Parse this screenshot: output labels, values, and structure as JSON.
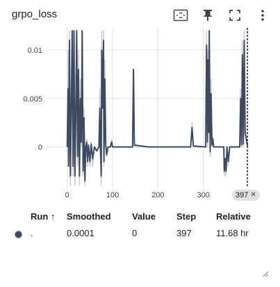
{
  "card": {
    "title": "grpo_loss",
    "icons": [
      "fit-domain-icon",
      "pin-icon",
      "fullscreen-icon",
      "more-vert-icon"
    ]
  },
  "step_chip": {
    "label": "397",
    "close": "✕"
  },
  "table": {
    "headers": {
      "run": "Run ↑",
      "smoothed": "Smoothed",
      "value": "Value",
      "step": "Step",
      "relative": "Relative"
    },
    "rows": [
      {
        "run": ".",
        "smoothed": "0.0001",
        "value": "0",
        "step": "397",
        "relative": "11.68 hr",
        "color": "#3d4a63"
      }
    ]
  },
  "chart_data": {
    "type": "line",
    "title": "",
    "xlabel": "",
    "ylabel": "",
    "xlim": [
      -47,
      403
    ],
    "ylim": [
      -0.0042,
      0.0123
    ],
    "x_ticks": [
      0,
      100,
      200,
      300
    ],
    "y_ticks": [
      0,
      0.005,
      0.01
    ],
    "x_tick_labels": [
      "0",
      "100",
      "200",
      "300"
    ],
    "y_tick_labels": [
      "0",
      "0.005",
      "0.01"
    ],
    "grid": true,
    "cursor_step": 397,
    "series": [
      {
        "role": "raw",
        "color": "#c8ced8",
        "points": [
          [
            0,
            0
          ],
          [
            2,
            0.01
          ],
          [
            3,
            -0.002
          ],
          [
            5,
            0.012
          ],
          [
            7,
            -0.004
          ],
          [
            9,
            0.006
          ],
          [
            11,
            0.012
          ],
          [
            13,
            -0.003
          ],
          [
            15,
            0.012
          ],
          [
            17,
            -0.004
          ],
          [
            19,
            0.005
          ],
          [
            21,
            0.012
          ],
          [
            23,
            -0.002
          ],
          [
            25,
            0.01
          ],
          [
            27,
            -0.004
          ],
          [
            29,
            0.007
          ],
          [
            31,
            0.0
          ],
          [
            33,
            0.012
          ],
          [
            35,
            -0.003
          ],
          [
            37,
            0.004
          ],
          [
            39,
            -0.004
          ],
          [
            41,
            0.0
          ],
          [
            43,
            0.0008
          ],
          [
            45,
            -0.002
          ],
          [
            47,
            0.0003
          ],
          [
            50,
            -0.002
          ],
          [
            53,
            0.0005
          ],
          [
            56,
            -0.002
          ],
          [
            60,
            0.0
          ],
          [
            65,
            -0.0005
          ],
          [
            70,
            0.0
          ],
          [
            72,
            0.006
          ],
          [
            73,
            0.0
          ],
          [
            75,
            -0.004
          ],
          [
            76,
            0.012
          ],
          [
            78,
            0.005
          ],
          [
            80,
            0.012
          ],
          [
            81,
            -0.002
          ],
          [
            83,
            0.009
          ],
          [
            85,
            0.0
          ],
          [
            87,
            -0.001
          ],
          [
            90,
            0.0
          ],
          [
            95,
            0.0
          ],
          [
            98,
            0.0008
          ],
          [
            100,
            0.0
          ],
          [
            110,
            0.0
          ],
          [
            144,
            0.0
          ],
          [
            146,
            0.008
          ],
          [
            148,
            0.0
          ],
          [
            180,
            0.0
          ],
          [
            272,
            0.0
          ],
          [
            275,
            0.0025
          ],
          [
            278,
            0.0
          ],
          [
            305,
            0.0
          ],
          [
            307,
            0.012
          ],
          [
            309,
            0.0
          ],
          [
            310,
            0.01
          ],
          [
            312,
            0.002
          ],
          [
            313,
            0.012
          ],
          [
            315,
            -0.001
          ],
          [
            317,
            0.007
          ],
          [
            319,
            0.0
          ],
          [
            321,
            0.001
          ],
          [
            323,
            0.0
          ],
          [
            330,
            0.0
          ],
          [
            345,
            0.0
          ],
          [
            346,
            -0.003
          ],
          [
            348,
            -0.0015
          ],
          [
            350,
            -0.003
          ],
          [
            352,
            0.0
          ],
          [
            355,
            -0.002
          ],
          [
            358,
            0.0
          ],
          [
            380,
            0.0
          ],
          [
            382,
            0.006
          ],
          [
            384,
            0.0
          ],
          [
            386,
            0.011
          ],
          [
            388,
            0.0
          ],
          [
            390,
            0.012
          ],
          [
            392,
            0.002
          ],
          [
            397,
            0.0
          ]
        ]
      },
      {
        "role": "smoothed",
        "color": "#3d4a63",
        "points": [
          [
            0,
            0
          ],
          [
            2,
            0.006
          ],
          [
            3,
            -0.002
          ],
          [
            5,
            0.011
          ],
          [
            7,
            -0.003
          ],
          [
            9,
            0.004
          ],
          [
            11,
            0.012
          ],
          [
            13,
            -0.002
          ],
          [
            15,
            0.012
          ],
          [
            17,
            -0.003
          ],
          [
            19,
            0.003
          ],
          [
            21,
            0.012
          ],
          [
            23,
            -0.001
          ],
          [
            25,
            0.008
          ],
          [
            27,
            -0.003
          ],
          [
            29,
            0.005
          ],
          [
            31,
            0.0005
          ],
          [
            33,
            0.012
          ],
          [
            35,
            -0.0025
          ],
          [
            37,
            0.003
          ],
          [
            39,
            -0.0035
          ],
          [
            41,
            0.0
          ],
          [
            43,
            0.0005
          ],
          [
            45,
            -0.0015
          ],
          [
            47,
            0.0002
          ],
          [
            50,
            -0.0015
          ],
          [
            53,
            0.0003
          ],
          [
            56,
            -0.0012
          ],
          [
            60,
            0.0
          ],
          [
            65,
            -0.0004
          ],
          [
            70,
            0.0
          ],
          [
            72,
            0.004
          ],
          [
            73,
            0.0003
          ],
          [
            75,
            -0.003
          ],
          [
            76,
            0.01
          ],
          [
            78,
            0.004
          ],
          [
            80,
            0.011
          ],
          [
            81,
            -0.0015
          ],
          [
            83,
            0.007
          ],
          [
            85,
            0.0002
          ],
          [
            87,
            -0.0008
          ],
          [
            90,
            0.0
          ],
          [
            95,
            0.0
          ],
          [
            98,
            0.0005
          ],
          [
            100,
            0.0
          ],
          [
            110,
            0.0
          ],
          [
            144,
            0.0
          ],
          [
            146,
            0.008
          ],
          [
            148,
            0.0002
          ],
          [
            180,
            0.0
          ],
          [
            272,
            0.0
          ],
          [
            275,
            0.002
          ],
          [
            278,
            0.0001
          ],
          [
            305,
            0.0
          ],
          [
            307,
            0.0105
          ],
          [
            309,
            0.0005
          ],
          [
            310,
            0.009
          ],
          [
            312,
            0.0015
          ],
          [
            313,
            0.012
          ],
          [
            315,
            -0.0005
          ],
          [
            317,
            0.0055
          ],
          [
            319,
            0.0002
          ],
          [
            321,
            0.0008
          ],
          [
            323,
            0.0
          ],
          [
            330,
            0.0
          ],
          [
            345,
            0.0
          ],
          [
            346,
            -0.0025
          ],
          [
            348,
            -0.0012
          ],
          [
            350,
            -0.0025
          ],
          [
            352,
            0.0
          ],
          [
            355,
            -0.0015
          ],
          [
            358,
            0.0
          ],
          [
            380,
            0.0
          ],
          [
            382,
            0.005
          ],
          [
            384,
            0.0002
          ],
          [
            386,
            0.0095
          ],
          [
            388,
            0.0003
          ],
          [
            390,
            0.011
          ],
          [
            392,
            0.0015
          ],
          [
            397,
            0.0001
          ]
        ]
      }
    ]
  }
}
